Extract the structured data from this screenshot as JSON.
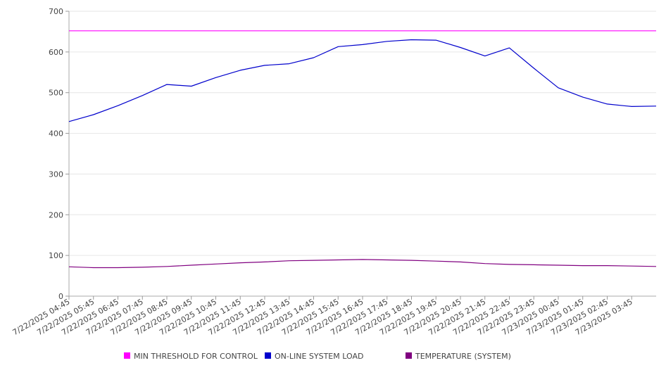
{
  "chart_data": {
    "type": "line",
    "ylim": [
      0,
      700
    ],
    "yticks": [
      0,
      100,
      200,
      300,
      400,
      500,
      600,
      700
    ],
    "grid": "horizontal",
    "legend_position": "bottom",
    "x_start": "7/22/2025 04:45",
    "x_end": "7/23/2025 04:45",
    "x_tick_labels": [
      "7/22/2025 04:45",
      "7/22/2025 05:45",
      "7/22/2025 06:45",
      "7/22/2025 07:45",
      "7/22/2025 08:45",
      "7/22/2025 09:45",
      "7/22/2025 10:45",
      "7/22/2025 11:45",
      "7/22/2025 12:45",
      "7/22/2025 13:45",
      "7/22/2025 14:45",
      "7/22/2025 15:45",
      "7/22/2025 16:45",
      "7/22/2025 17:45",
      "7/22/2025 18:45",
      "7/22/2025 19:45",
      "7/22/2025 20:45",
      "7/22/2025 21:45",
      "7/22/2025 22:45",
      "7/22/2025 23:45",
      "7/23/2025 00:45",
      "7/23/2025 01:45",
      "7/23/2025 02:45",
      "7/23/2025 03:45"
    ],
    "series": [
      {
        "name": "MIN THRESHOLD FOR CONTROL",
        "color": "#ff00ff",
        "values": [
          652,
          652,
          652,
          652,
          652,
          652,
          652,
          652,
          652,
          652,
          652,
          652,
          652,
          652,
          652,
          652,
          652,
          652,
          652,
          652,
          652,
          652,
          652,
          652,
          652
        ]
      },
      {
        "name": "ON-LINE SYSTEM LOAD",
        "color": "#0000cc",
        "values": [
          429,
          446,
          468,
          493,
          520,
          516,
          537,
          555,
          567,
          571,
          586,
          613,
          618,
          626,
          630,
          629,
          611,
          590,
          610,
          560,
          512,
          489,
          472,
          466,
          467
        ]
      },
      {
        "name": "TEMPERATURE (SYSTEM)",
        "color": "#800080",
        "values": [
          72,
          70,
          70,
          71,
          73,
          76,
          79,
          82,
          84,
          87,
          88,
          89,
          90,
          89,
          88,
          86,
          84,
          80,
          78,
          77,
          76,
          75,
          75,
          74,
          73
        ]
      }
    ]
  }
}
